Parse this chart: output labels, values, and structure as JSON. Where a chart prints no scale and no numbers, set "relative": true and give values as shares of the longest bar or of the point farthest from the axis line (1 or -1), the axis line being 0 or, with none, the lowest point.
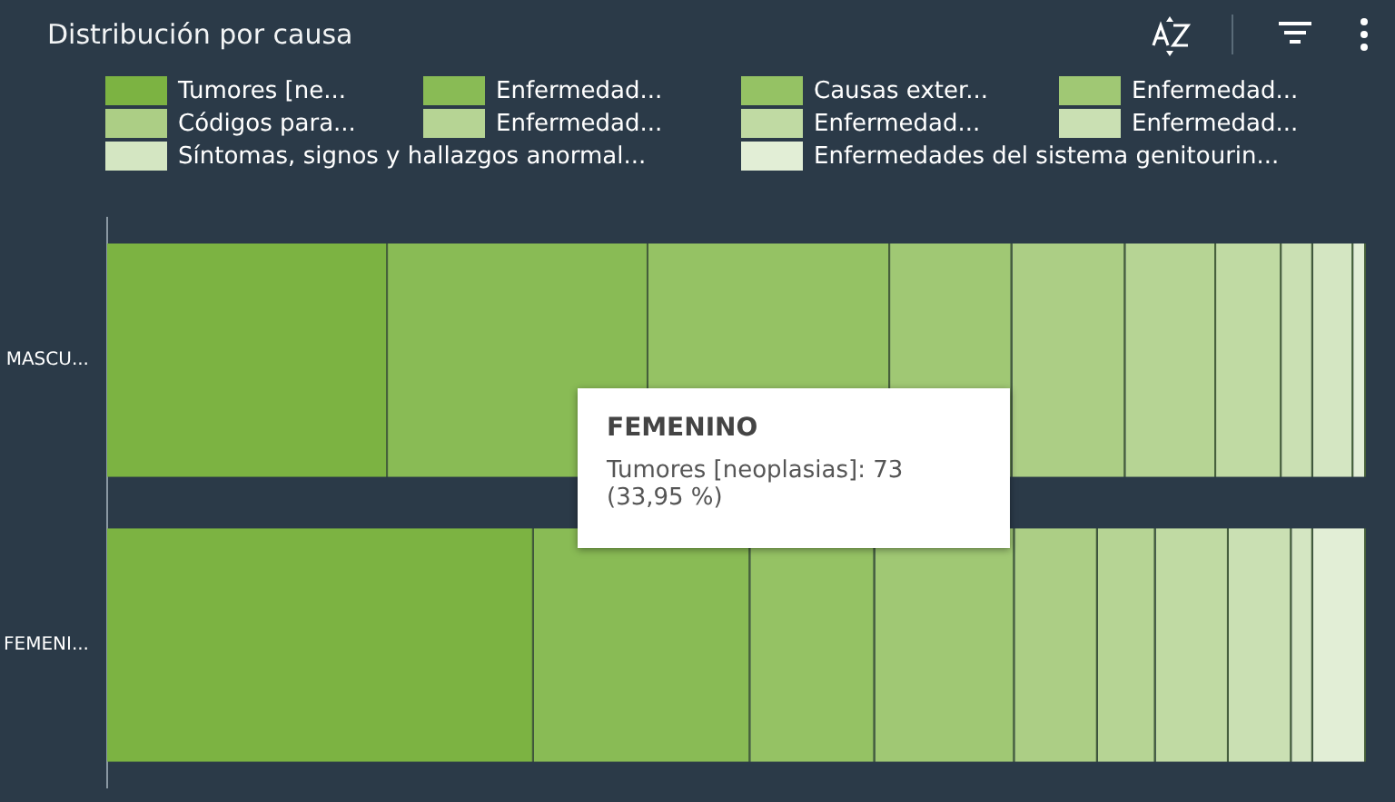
{
  "chart_data": {
    "type": "bar",
    "title": "Distribución por causa",
    "orientation": "horizontal",
    "stacked": true,
    "relative": true,
    "legend": "top",
    "categories": [
      "MASCU...",
      "FEMENI..."
    ],
    "series": [
      {
        "name": "Tumores [ne...",
        "color": "#7cb342",
        "values": [
          0.223,
          0.339
        ]
      },
      {
        "name": "Enfermedad...",
        "color": "#89bb55",
        "values": [
          0.207,
          0.172
        ]
      },
      {
        "name": "Causas exter...",
        "color": "#95c264",
        "values": [
          0.192,
          0.099
        ]
      },
      {
        "name": "Enfermedad...",
        "color": "#a0c874",
        "values": [
          0.097,
          0.111
        ]
      },
      {
        "name": "Códigos para...",
        "color": "#acce85",
        "values": [
          0.09,
          0.066
        ]
      },
      {
        "name": "Enfermedad...",
        "color": "#b6d494",
        "values": [
          0.072,
          0.046
        ]
      },
      {
        "name": "Enfermedad...",
        "color": "#c0daa3",
        "values": [
          0.052,
          0.058
        ]
      },
      {
        "name": "Enfermedad...",
        "color": "#cae0b3",
        "values": [
          0.025,
          0.05
        ]
      },
      {
        "name": "Síntomas, signos y hallazgos anormal...",
        "color": "#d4e6c2",
        "values": [
          0.032,
          0.017
        ]
      },
      {
        "name": "Enfermedades del sistema genitourin...",
        "color": "#e2eed6",
        "values": [
          0.01,
          0.042
        ]
      }
    ],
    "annotations": [
      "FEMENINO",
      "Tumores [neoplasias]: 73",
      "(33,95 %)"
    ]
  }
}
